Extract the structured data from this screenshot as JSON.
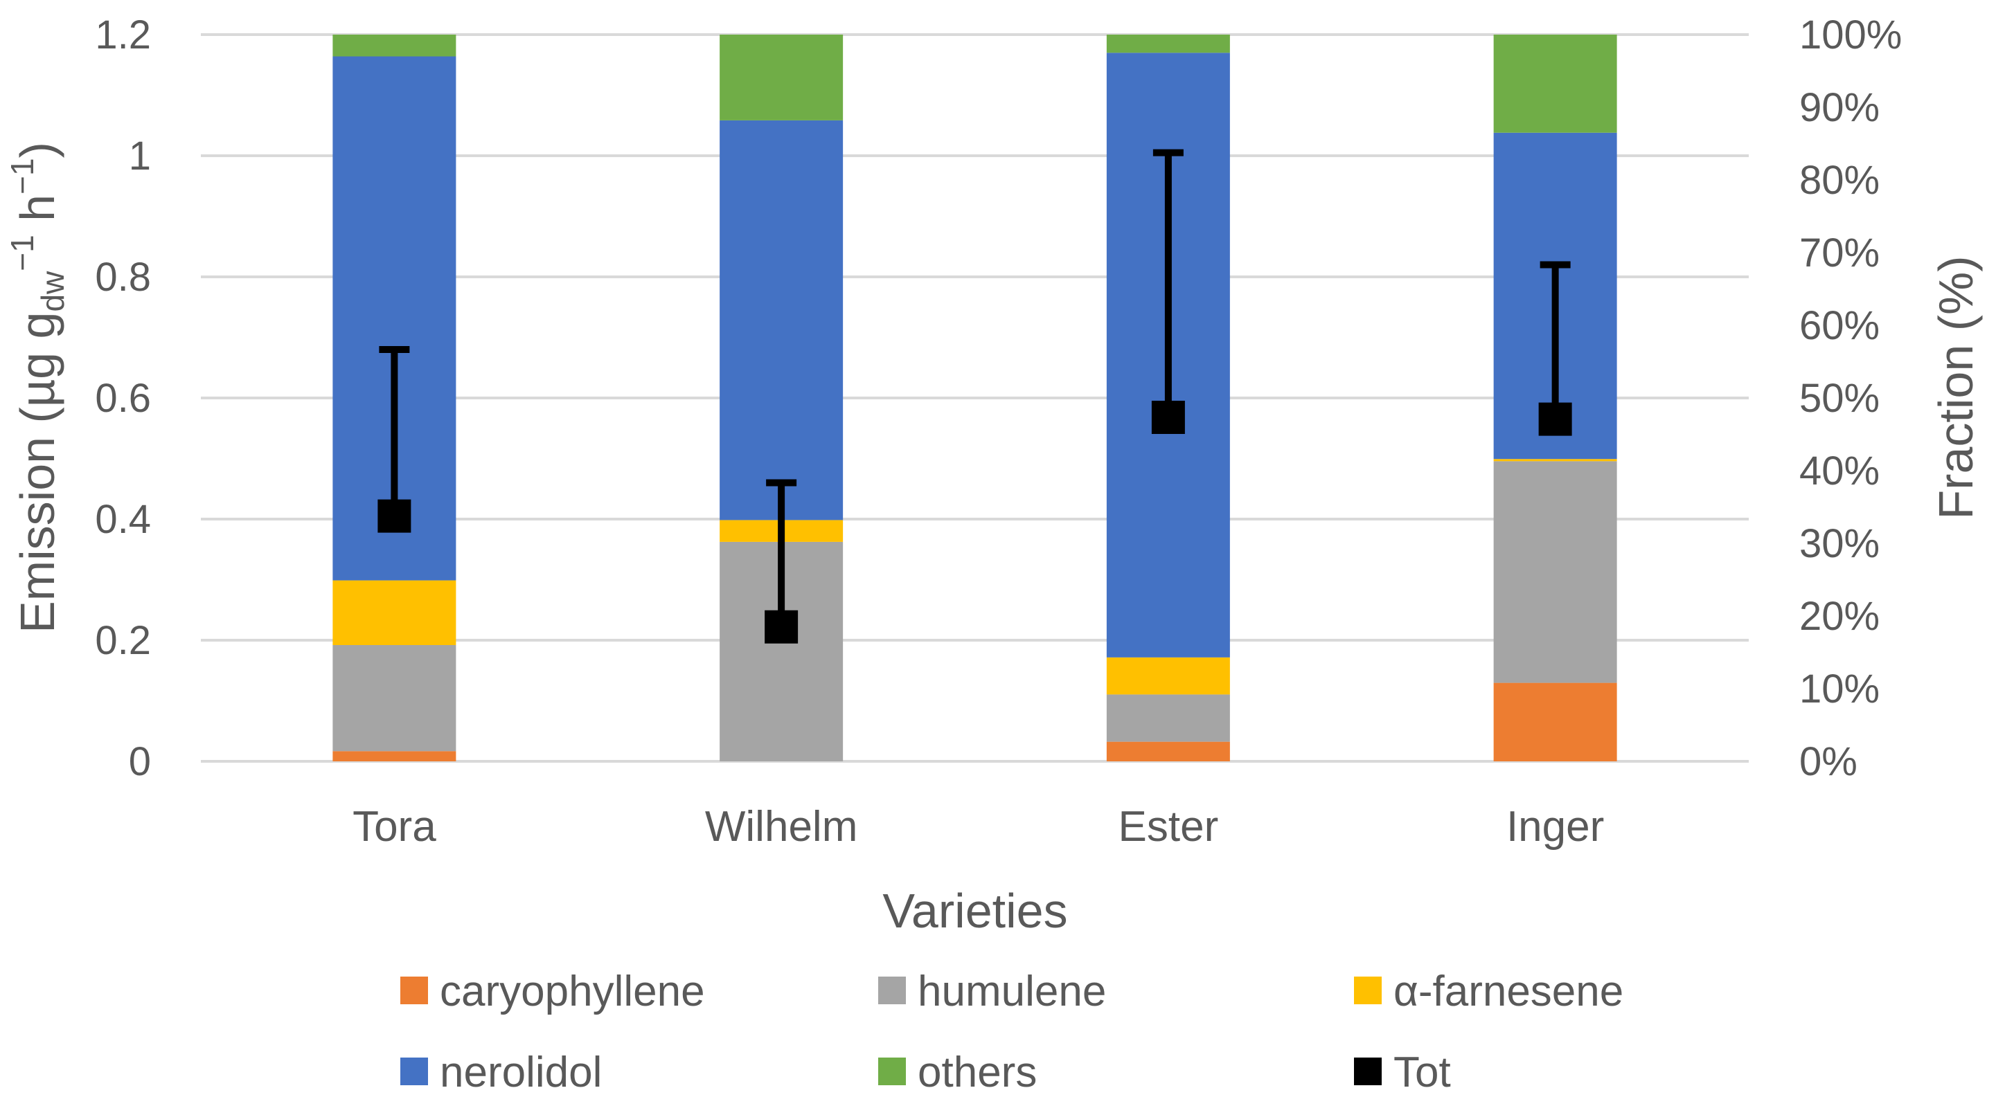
{
  "chart_data": {
    "type": "bar",
    "stacked": true,
    "categories": [
      "Tora",
      "Wilhelm",
      "Ester",
      "Inger"
    ],
    "xlabel": "Varieties",
    "ylabel": {
      "prefix": "Emission (µg g",
      "sub1": "dw",
      "sup1": "−1",
      "mid": " h",
      "sup2": "−1",
      "suffix": ")"
    },
    "ylabel_right": "Fraction (%)",
    "ylim": [
      0,
      1.2
    ],
    "yticks": [
      "0",
      "0.2",
      "0.4",
      "0.6",
      "0.8",
      "1",
      "1.2"
    ],
    "ylim_right": [
      0,
      100
    ],
    "yticks_right": [
      "0%",
      "10%",
      "20%",
      "30%",
      "40%",
      "50%",
      "60%",
      "70%",
      "80%",
      "90%",
      "100%"
    ],
    "grid": true,
    "legend_position": "bottom",
    "series_axis": "right",
    "series": [
      {
        "name": "caryophyllene",
        "color": "#ED7D31",
        "values": [
          1.4,
          0,
          2.7,
          10.8
        ]
      },
      {
        "name": "humulene",
        "color": "#A5A5A5",
        "values": [
          14.6,
          30.2,
          6.5,
          30.5
        ]
      },
      {
        "name": "α-farnesene",
        "color": "#FFC000",
        "values": [
          8.9,
          3.0,
          5.1,
          0.3
        ]
      },
      {
        "name": "nerolidol",
        "color": "#4472C4",
        "values": [
          72.1,
          55.0,
          83.2,
          44.9
        ]
      },
      {
        "name": "others",
        "color": "#70AD47",
        "values": [
          3.0,
          11.8,
          2.5,
          13.5
        ]
      }
    ],
    "total": {
      "name": "Tot",
      "color": "#000000",
      "axis": "left",
      "values": [
        0.405,
        0.222,
        0.568,
        0.565
      ],
      "error_upper": [
        0.68,
        0.46,
        1.005,
        0.82
      ]
    }
  }
}
